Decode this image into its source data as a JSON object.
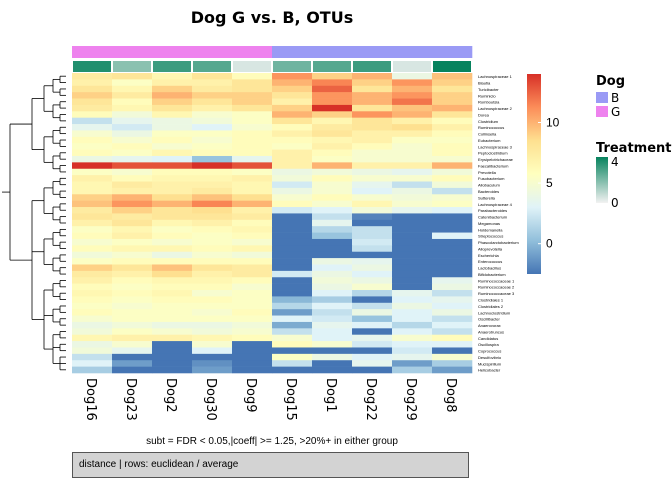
{
  "title": "Dog G vs. B, OTUs",
  "subtitle": "subt = FDR < 0.05,|coeff| >= 1.25, >20%+ in either group",
  "caption": "distance | rows: euclidean / average",
  "chart_data": {
    "type": "heatmap",
    "title": "Dog G vs. B, OTUs",
    "columns": [
      "Dog16",
      "Dog23",
      "Dog2",
      "Dog30",
      "Dog9",
      "Dog15",
      "Dog1",
      "Dog22",
      "Dog29",
      "Dog8"
    ],
    "column_groups": [
      {
        "name": "Dog",
        "values": [
          "G",
          "G",
          "G",
          "G",
          "G",
          "B",
          "B",
          "B",
          "B",
          "B"
        ]
      },
      {
        "name": "Treatment",
        "values": [
          4,
          2,
          3.5,
          3,
          0.5,
          2.5,
          3,
          3.5,
          0.5,
          4.5
        ]
      }
    ],
    "rows": [
      "Lachnospiraceae 1",
      "Blautia",
      "Turicibacter",
      "Ruminiclo",
      "Romboutsia",
      "Lachnospiraceae 2",
      "Dorea",
      "Clostridium",
      "Ruminococcus",
      "Collinsella",
      "Eubacterium",
      "Lachnospiraceae 3",
      "Peptoclostridium",
      "Erysipelotrichaceae",
      "Faecalibacterium",
      "Prevotella",
      "Fusobacterium",
      "Allobaculum",
      "Bacteroides",
      "Sutterella",
      "Lachnospiraceae 4",
      "Parabacteroides",
      "Catenibacterium",
      "Megamonas",
      "Holdemanella",
      "Streptococcus",
      "Phascolarctobacterium",
      "Alloprevotella",
      "Escherichia",
      "Enterococcus",
      "Lactobacillus",
      "Bifidobacterium",
      "Ruminococcaceae 1",
      "Ruminococcaceae 2",
      "Ruminococcaceae 3",
      "Clostridiales 1",
      "Clostridiales 2",
      "Lachnoclostridium",
      "Oscillibacter",
      "Anaerovorax",
      "Anaerotruncus",
      "Candidatus",
      "Oscillospira",
      "Coprococcus",
      "Desulfovibrio",
      "Mucispirillum",
      "Helicobacter"
    ],
    "values": [
      [
        7.5,
        8,
        6.5,
        8,
        6,
        11,
        9,
        10,
        4,
        9.5
      ],
      [
        7,
        5.5,
        7,
        7,
        8,
        10,
        11.5,
        9,
        11,
        9
      ],
      [
        8,
        6.5,
        9,
        7.5,
        8,
        9,
        12.5,
        8,
        10,
        8
      ],
      [
        9,
        7.5,
        10,
        9,
        9,
        8,
        11,
        10,
        11,
        9
      ],
      [
        8,
        6,
        9,
        8,
        9,
        7,
        11,
        10,
        12,
        9
      ],
      [
        7.5,
        6.5,
        8,
        7,
        8,
        9,
        14,
        8,
        9.5,
        10
      ],
      [
        6,
        4.5,
        6.5,
        5,
        5.5,
        10,
        9,
        11,
        10,
        8
      ],
      [
        2,
        3.5,
        4,
        4.5,
        5.5,
        8,
        6.5,
        8,
        7,
        6
      ],
      [
        3.5,
        2.5,
        4,
        3,
        5,
        6,
        7.5,
        8,
        8.5,
        7
      ],
      [
        5,
        4,
        5.5,
        5.5,
        6,
        7,
        8,
        7,
        7,
        6
      ],
      [
        6,
        5,
        6,
        5,
        6,
        6,
        6.5,
        7,
        5.5,
        5.5
      ],
      [
        5.5,
        6,
        5,
        5.5,
        6,
        5.5,
        7,
        6,
        5,
        6
      ],
      [
        6,
        5.5,
        6.5,
        6,
        6,
        7,
        6,
        5,
        5,
        6
      ],
      [
        4,
        3.5,
        3,
        0.5,
        3.5,
        7,
        5.5,
        5,
        5,
        5
      ],
      [
        14,
        13,
        13,
        14,
        13,
        7,
        10,
        7,
        7,
        10
      ],
      [
        5.5,
        5,
        6,
        6,
        5.5,
        4,
        4.5,
        4,
        3.5,
        4.5
      ],
      [
        7,
        6,
        6.5,
        6.5,
        7,
        4.5,
        6,
        5,
        5,
        6
      ],
      [
        6.5,
        7.5,
        7,
        7,
        6.5,
        2.5,
        5,
        3.5,
        2,
        4.5
      ],
      [
        6.5,
        7,
        7,
        7.5,
        6.5,
        4,
        5,
        3,
        4,
        2
      ],
      [
        9,
        10,
        8.5,
        9.5,
        8.5,
        5,
        6,
        5,
        4.5,
        5
      ],
      [
        9.5,
        11,
        10,
        11.5,
        10,
        6,
        5,
        6.5,
        5,
        5.5
      ],
      [
        7.5,
        9,
        8,
        8.5,
        7,
        2.5,
        3,
        4.5,
        3.5,
        3
      ],
      [
        8,
        7.5,
        8,
        8,
        7.5,
        -2.5,
        2,
        -2,
        -2.5,
        -2.5
      ],
      [
        7,
        8,
        6.5,
        7,
        6,
        -2.5,
        3.5,
        -2.5,
        -2.5,
        -2.5
      ],
      [
        5.5,
        6.5,
        5.5,
        6,
        6.5,
        -2.5,
        1.5,
        2,
        -2.5,
        -2.5
      ],
      [
        6,
        7,
        6,
        5.5,
        6,
        -2.5,
        0.5,
        2,
        -2.5,
        3
      ],
      [
        5,
        5.5,
        5,
        5.5,
        5,
        -2.5,
        -2.5,
        2.5,
        -2.5,
        -2.5
      ],
      [
        6,
        6.5,
        6.5,
        6,
        6.5,
        -2.5,
        -2.5,
        2,
        -2.5,
        -2.5
      ],
      [
        4.5,
        5,
        4,
        5,
        4.5,
        -2.5,
        -2.5,
        -2.5,
        -2.5,
        -2.5
      ],
      [
        5.5,
        6,
        6,
        6,
        6,
        -2.5,
        4,
        3.5,
        -2.5,
        -2.5
      ],
      [
        9,
        8,
        9.5,
        8,
        7.5,
        -2.5,
        3,
        4,
        -2.5,
        -2.5
      ],
      [
        7.5,
        7,
        8.5,
        7,
        7.5,
        2.5,
        4,
        3,
        -2.5,
        -2.5
      ],
      [
        7,
        6,
        6.5,
        6.5,
        6,
        -2.5,
        4.5,
        4,
        -2.5,
        3.5
      ],
      [
        6,
        5.5,
        6,
        6,
        5,
        -2.5,
        4,
        5,
        -2.5,
        4
      ],
      [
        6.5,
        6,
        6.5,
        5,
        5.5,
        -2.5,
        3,
        1.5,
        3.5,
        2
      ],
      [
        6,
        5.5,
        6,
        6,
        5.5,
        0,
        1,
        -2.5,
        3,
        3.5
      ],
      [
        5.5,
        5,
        5.5,
        5.5,
        5.5,
        1.5,
        3,
        2,
        4,
        3
      ],
      [
        6,
        5.5,
        5.5,
        5,
        6,
        -1,
        2,
        4,
        3,
        4
      ],
      [
        5,
        5.5,
        5.5,
        5.5,
        5.5,
        3,
        2.5,
        0.5,
        3,
        2
      ],
      [
        4,
        4.5,
        4,
        4,
        4.5,
        -0.5,
        3.5,
        3,
        1.5,
        3
      ],
      [
        4.5,
        5.5,
        5,
        4.5,
        5,
        2,
        3,
        -2.5,
        3,
        2
      ],
      [
        6.5,
        7,
        7,
        6.5,
        6,
        5,
        3,
        3.5,
        5,
        6
      ],
      [
        4,
        5,
        -2.5,
        5,
        -2.5,
        6,
        5,
        2.5,
        3,
        3
      ],
      [
        4.5,
        3.5,
        -2.5,
        3,
        -2.5,
        -2.5,
        -2.5,
        -2.5,
        2.5,
        -2.5
      ],
      [
        2,
        -2.5,
        -2.5,
        -2.5,
        -2.5,
        5.5,
        4,
        3,
        3.5,
        5
      ],
      [
        3,
        -1,
        -2.5,
        -1.5,
        -2.5,
        2,
        -2.5,
        3.5,
        -1,
        1
      ],
      [
        1,
        -2.5,
        -2.5,
        -1,
        -2.5,
        -2.5,
        -2.5,
        -2.5,
        1,
        -1
      ]
    ],
    "colorbar_ticks": [
      0,
      5,
      10
    ],
    "color_range": [
      -2.5,
      14
    ],
    "legends": [
      {
        "title": "Dog",
        "entries": [
          {
            "label": "B",
            "color": "#9a9af5"
          },
          {
            "label": "G",
            "color": "#ee82ee"
          }
        ]
      },
      {
        "title": "Treatment",
        "ticks": [
          4,
          0
        ],
        "low_color": "#f2f2f2",
        "high_color": "#07835e"
      }
    ]
  }
}
